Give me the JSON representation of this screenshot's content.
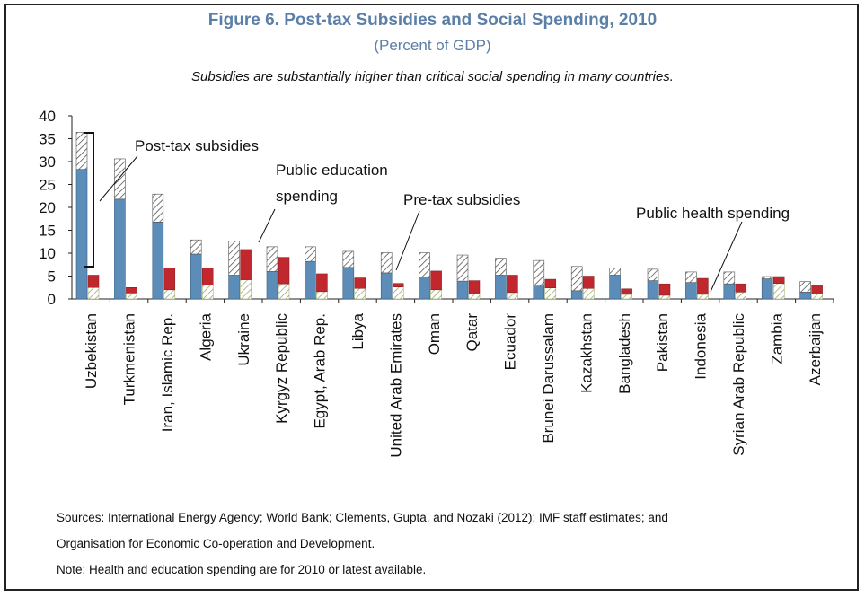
{
  "figure": {
    "title": "Figure 6. Post-tax Subsidies and Social Spending, 2010",
    "subtitle": "(Percent of GDP)",
    "caption": "Subsidies are substantially higher than critical social spending in many countries."
  },
  "notes": [
    "Sources: International Energy Agency; World Bank; Clements, Gupta, and Nozaki (2012); IMF staff estimates; and",
    "Organisation for Economic Co-operation and Development.",
    "Note: Health and education spending are for 2010 or latest available."
  ],
  "annotations": {
    "post_tax": "Post-tax subsidies",
    "education_line1": "Public education",
    "education_line2": "spending",
    "pre_tax": "Pre-tax subsidies",
    "health": "Public health spending"
  },
  "colors": {
    "pre_tax": "#5b8db8",
    "education": "#c0282d",
    "title": "#5b7fa6",
    "hatch": "#555555",
    "health_hatch": "#8ea05a"
  },
  "chart_data": {
    "type": "bar",
    "ylim": [
      0,
      40
    ],
    "yticks": [
      "0",
      "5",
      "10",
      "15",
      "20",
      "25",
      "30",
      "35",
      "40"
    ],
    "categories": [
      "Uzbekistan",
      "Turkmenistan",
      "Iran, Islamic Rep.",
      "Algeria",
      "Ukraine",
      "Kyrgyz Republic",
      "Egypt, Arab Rep.",
      "Libya",
      "United Arab Emirates",
      "Oman",
      "Qatar",
      "Ecuador",
      "Brunei Darussalam",
      "Kazakhstan",
      "Bangladesh",
      "Pakistan",
      "Indonesia",
      "Syrian Arab Republic",
      "Zambia",
      "Azerbaijan"
    ],
    "series": [
      {
        "name": "Pre-tax subsidies",
        "values": [
          28.3,
          21.8,
          16.8,
          9.8,
          5.2,
          6.0,
          8.2,
          6.9,
          5.7,
          4.8,
          3.9,
          5.2,
          2.8,
          1.8,
          5.2,
          4.0,
          3.6,
          3.3,
          4.4,
          1.5
        ]
      },
      {
        "name": "Post-tax subsidies",
        "values": [
          36.4,
          30.6,
          22.9,
          12.9,
          12.6,
          11.4,
          11.4,
          10.4,
          10.1,
          10.1,
          9.6,
          8.9,
          8.4,
          7.1,
          6.8,
          6.5,
          5.9,
          5.9,
          4.9,
          3.8
        ]
      },
      {
        "name": "Public health spending",
        "values": [
          2.5,
          1.3,
          2.0,
          3.1,
          4.2,
          3.3,
          1.6,
          2.3,
          2.6,
          2.0,
          1.1,
          1.4,
          2.4,
          2.3,
          1.0,
          0.8,
          1.0,
          1.5,
          3.4,
          1.1
        ]
      },
      {
        "name": "Public education spending",
        "values": [
          5.2,
          2.5,
          6.8,
          6.8,
          10.8,
          9.1,
          5.5,
          4.6,
          3.4,
          6.1,
          4.0,
          5.2,
          4.3,
          5.0,
          2.2,
          3.3,
          4.5,
          3.3,
          4.9,
          3.0
        ]
      }
    ]
  }
}
